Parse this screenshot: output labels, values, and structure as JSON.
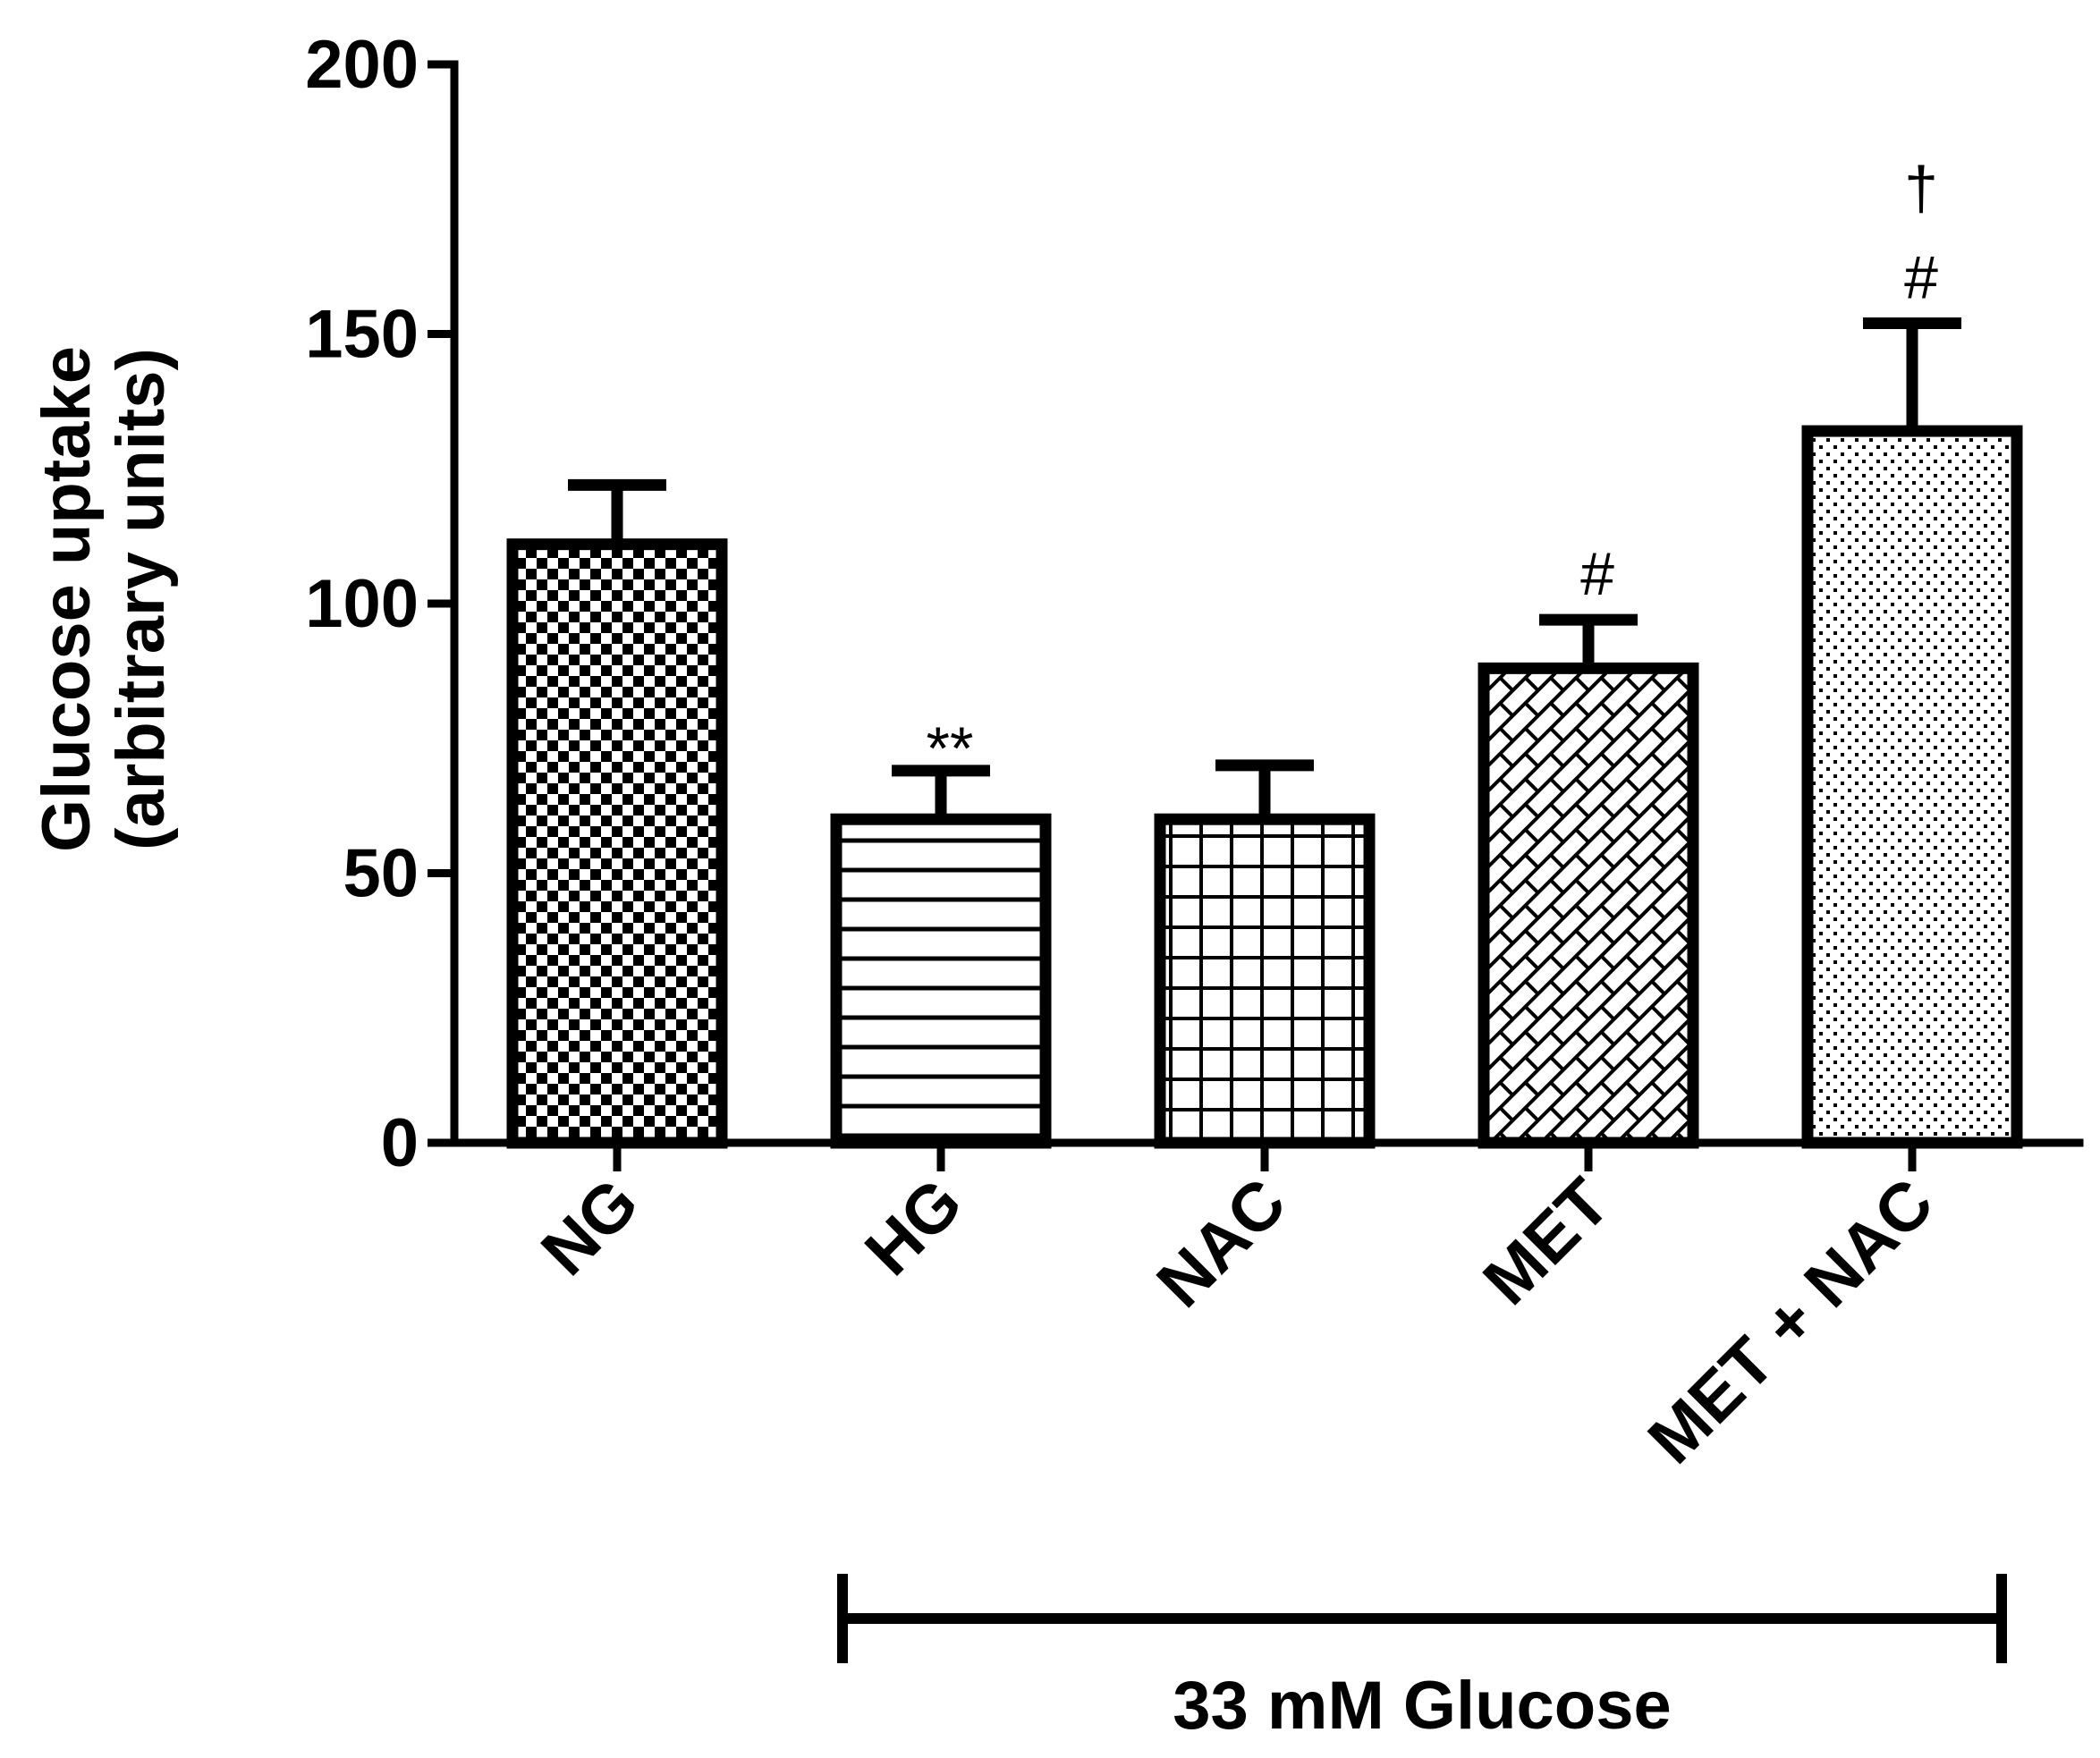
{
  "chart_data": {
    "type": "bar",
    "title": "",
    "xlabel": "",
    "ylabel": [
      "Glucose uptake",
      "(arbitrary units)"
    ],
    "ylim": [
      0,
      200
    ],
    "yticks": [
      0,
      50,
      100,
      150,
      200
    ],
    "grid": false,
    "categories": [
      "NG",
      "HG",
      "NAC",
      "MET",
      "MET + NAC"
    ],
    "values": [
      111,
      60,
      60,
      88,
      132
    ],
    "error": [
      11,
      9,
      10,
      9,
      20
    ],
    "patterns": [
      "checker",
      "horizontal-lines",
      "grid",
      "diagonal-brick",
      "dots"
    ],
    "annotations": [
      {
        "category": "HG",
        "text": "**"
      },
      {
        "category": "MET",
        "text": "#"
      },
      {
        "category": "MET + NAC",
        "text": "#"
      },
      {
        "category": "MET + NAC",
        "text": "†"
      }
    ],
    "bracket": {
      "from": "HG",
      "to": "MET + NAC",
      "label": "33 mM Glucose"
    }
  }
}
